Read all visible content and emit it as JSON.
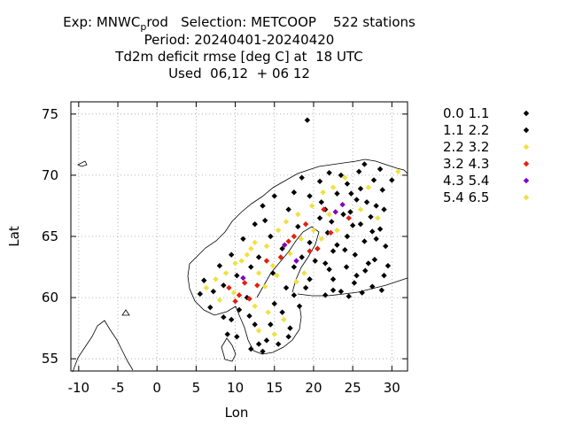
{
  "title": {
    "line1_pre": "Exp: MNWC",
    "line1_sub": "p",
    "line1_post": "rod   Selection: METCOOP    522 stations",
    "line2": "Period: 20240401-20240420",
    "line3": "Td2m deficit rmse [deg C] at  18 UTC",
    "line4": "Used  06,12  + 06 12"
  },
  "chart_data": {
    "type": "scatter",
    "title": "Td2m deficit rmse [deg C] at  18 UTC",
    "xlabel": "Lon",
    "ylabel": "Lat",
    "xlim": [
      -11,
      32
    ],
    "ylim": [
      54,
      76
    ],
    "xticks": [
      -10,
      -5,
      0,
      5,
      10,
      15,
      20,
      25,
      30
    ],
    "xtick_labels": [
      "-10",
      "-5",
      "0",
      "5",
      "10",
      "15",
      "20",
      "25",
      "30"
    ],
    "yticks": [
      55,
      60,
      65,
      70,
      75
    ],
    "ytick_labels": [
      "55",
      "60",
      "65",
      "70",
      "75"
    ],
    "grid": true,
    "legend_position": "right",
    "legend": [
      {
        "label": "0.0 1.1",
        "color": "#000000"
      },
      {
        "label": "1.1 2.2",
        "color": "#000000"
      },
      {
        "label": "2.2 3.2",
        "color": "#f0e040"
      },
      {
        "label": "3.2 4.3",
        "color": "#e02010"
      },
      {
        "label": "4.3 5.4",
        "color": "#8000c0"
      },
      {
        "label": "5.4 6.5",
        "color": "#f0e040"
      }
    ],
    "series": [
      {
        "name": "0.0 1.1",
        "color": "#000000",
        "points": [
          [
            19.2,
            74.5
          ],
          [
            26.5,
            70.9
          ],
          [
            25.8,
            70.3
          ],
          [
            28.5,
            70.5
          ],
          [
            23.5,
            70.0
          ],
          [
            27.7,
            69.6
          ],
          [
            24.3,
            69.3
          ],
          [
            26.0,
            68.9
          ],
          [
            23.0,
            68.5
          ],
          [
            25.5,
            68.0
          ],
          [
            28.0,
            67.5
          ],
          [
            21.5,
            67.2
          ],
          [
            24.7,
            67.0
          ],
          [
            27.3,
            66.6
          ],
          [
            22.3,
            66.2
          ],
          [
            25.0,
            65.9
          ],
          [
            28.5,
            65.6
          ],
          [
            21.8,
            65.3
          ],
          [
            24.3,
            65.0
          ],
          [
            26.5,
            64.6
          ],
          [
            29.2,
            64.2
          ],
          [
            22.5,
            63.8
          ],
          [
            25.3,
            63.5
          ],
          [
            27.8,
            63.1
          ],
          [
            21.5,
            62.8
          ],
          [
            24.2,
            62.5
          ],
          [
            26.6,
            62.2
          ],
          [
            29.0,
            61.8
          ],
          [
            22.5,
            61.5
          ],
          [
            25.2,
            61.2
          ],
          [
            27.5,
            60.9
          ],
          [
            23.5,
            60.5
          ],
          [
            26.2,
            60.4
          ],
          [
            28.7,
            60.6
          ],
          [
            21.5,
            60.2
          ],
          [
            24.5,
            60.1
          ],
          [
            20.2,
            63.0
          ],
          [
            19.5,
            64.5
          ],
          [
            18.0,
            65.8
          ],
          [
            16.8,
            67.2
          ],
          [
            15.0,
            68.3
          ],
          [
            13.5,
            67.5
          ],
          [
            12.5,
            66.0
          ],
          [
            11.0,
            64.8
          ],
          [
            9.5,
            63.5
          ],
          [
            8.0,
            62.6
          ],
          [
            6.0,
            61.4
          ],
          [
            5.5,
            60.3
          ],
          [
            6.8,
            59.2
          ],
          [
            8.5,
            58.4
          ],
          [
            10.5,
            59.0
          ],
          [
            12.5,
            57.8
          ],
          [
            14.0,
            56.5
          ],
          [
            15.5,
            56.2
          ],
          [
            17.0,
            57.5
          ],
          [
            18.2,
            59.3
          ],
          [
            16.5,
            60.8
          ],
          [
            14.8,
            62.0
          ],
          [
            13.0,
            63.3
          ],
          [
            17.5,
            62.5
          ],
          [
            19.5,
            61.5
          ],
          [
            16.0,
            58.8
          ],
          [
            13.5,
            55.6
          ],
          [
            12.0,
            55.8
          ],
          [
            10.2,
            56.8
          ],
          [
            9.0,
            57.0
          ],
          [
            11.5,
            60.0
          ],
          [
            20.8,
            69.5
          ],
          [
            18.5,
            69.8
          ],
          [
            22.0,
            70.2
          ],
          [
            30.0,
            69.6
          ],
          [
            28.8,
            68.8
          ]
        ]
      },
      {
        "name": "1.1 2.2",
        "color": "#000000",
        "points": [
          [
            17.5,
            68.6
          ],
          [
            19.5,
            68.3
          ],
          [
            21.0,
            67.8
          ],
          [
            23.8,
            66.8
          ],
          [
            26.0,
            66.0
          ],
          [
            28.0,
            64.8
          ],
          [
            23.0,
            64.3
          ],
          [
            20.5,
            64.0
          ],
          [
            18.5,
            63.3
          ],
          [
            16.0,
            64.0
          ],
          [
            14.5,
            65.0
          ],
          [
            13.8,
            66.3
          ],
          [
            12.0,
            62.5
          ],
          [
            10.2,
            61.8
          ],
          [
            8.5,
            61.0
          ],
          [
            7.2,
            60.5
          ],
          [
            9.5,
            58.2
          ],
          [
            11.8,
            58.5
          ],
          [
            14.5,
            57.8
          ],
          [
            16.8,
            56.8
          ],
          [
            13.0,
            56.2
          ],
          [
            15.0,
            59.5
          ],
          [
            17.5,
            60.2
          ],
          [
            19.0,
            60.8
          ],
          [
            22.5,
            60.6
          ],
          [
            25.5,
            61.8
          ],
          [
            27.0,
            62.8
          ],
          [
            29.5,
            62.6
          ],
          [
            24.0,
            63.9
          ],
          [
            22.0,
            62.3
          ],
          [
            26.8,
            67.8
          ],
          [
            24.8,
            68.5
          ],
          [
            29.0,
            67.2
          ],
          [
            27.5,
            65.4
          ],
          [
            20.8,
            66.5
          ]
        ]
      },
      {
        "name": "2.2 3.2",
        "color": "#f0e040",
        "points": [
          [
            7.5,
            61.5
          ],
          [
            8.8,
            62.0
          ],
          [
            10.0,
            62.8
          ],
          [
            11.5,
            63.5
          ],
          [
            12.5,
            64.5
          ],
          [
            14.0,
            64.2
          ],
          [
            15.5,
            65.5
          ],
          [
            16.5,
            66.2
          ],
          [
            18.0,
            66.8
          ],
          [
            19.8,
            67.5
          ],
          [
            21.2,
            68.6
          ],
          [
            22.5,
            69.0
          ],
          [
            24.0,
            69.8
          ],
          [
            20.0,
            65.5
          ],
          [
            17.0,
            63.6
          ],
          [
            15.3,
            61.8
          ],
          [
            13.8,
            60.9
          ],
          [
            12.5,
            59.3
          ],
          [
            14.2,
            58.8
          ],
          [
            16.2,
            58.2
          ],
          [
            13.0,
            57.3
          ],
          [
            15.0,
            57.0
          ],
          [
            6.3,
            60.8
          ],
          [
            8.0,
            59.8
          ],
          [
            9.8,
            60.4
          ],
          [
            23.0,
            65.5
          ],
          [
            26.0,
            67.2
          ],
          [
            28.2,
            66.5
          ],
          [
            27.0,
            69.0
          ],
          [
            30.8,
            70.3
          ],
          [
            18.8,
            62.0
          ],
          [
            21.0,
            64.8
          ],
          [
            22.0,
            66.8
          ],
          [
            17.8,
            61.3
          ],
          [
            12.0,
            64.0
          ],
          [
            10.8,
            63.0
          ]
        ]
      },
      {
        "name": "3.2 4.3",
        "color": "#e02010",
        "points": [
          [
            9.2,
            60.8
          ],
          [
            10.5,
            60.2
          ],
          [
            11.2,
            61.2
          ],
          [
            12.8,
            61.0
          ],
          [
            10.0,
            59.7
          ],
          [
            11.8,
            59.9
          ],
          [
            14.0,
            63.0
          ],
          [
            15.8,
            63.3
          ],
          [
            17.5,
            65.0
          ],
          [
            19.0,
            66.0
          ],
          [
            20.5,
            64.0
          ],
          [
            22.2,
            65.3
          ],
          [
            21.3,
            67.2
          ],
          [
            24.5,
            66.5
          ],
          [
            19.5,
            63.8
          ],
          [
            16.8,
            64.6
          ]
        ]
      },
      {
        "name": "4.3 5.4",
        "color": "#8000c0",
        "points": [
          [
            11.0,
            61.6
          ],
          [
            16.3,
            64.3
          ],
          [
            17.8,
            63.0
          ],
          [
            22.8,
            67.0
          ],
          [
            23.7,
            67.6
          ]
        ]
      },
      {
        "name": "5.4 6.5",
        "color": "#f0e040",
        "points": [
          [
            13.0,
            62.0
          ],
          [
            14.8,
            62.6
          ],
          [
            18.4,
            64.8
          ]
        ]
      }
    ]
  }
}
